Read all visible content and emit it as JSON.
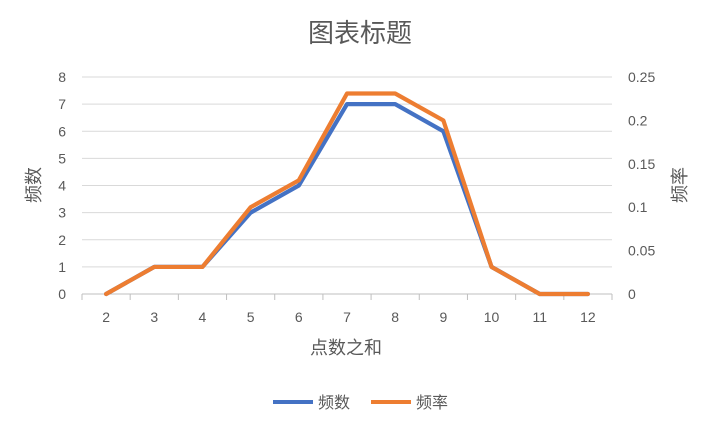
{
  "chart_data": {
    "type": "line",
    "title": "图表标题",
    "xlabel": "点数之和",
    "ylabel": "频数",
    "y2label": "频率",
    "categories": [
      "2",
      "3",
      "4",
      "5",
      "6",
      "7",
      "8",
      "9",
      "10",
      "11",
      "12"
    ],
    "ylim": [
      0,
      8
    ],
    "y2lim": [
      0,
      0.25
    ],
    "y_ticks": [
      "0",
      "1",
      "2",
      "3",
      "4",
      "5",
      "6",
      "7",
      "8"
    ],
    "y2_ticks": [
      "0",
      "0.05",
      "0.1",
      "0.15",
      "0.2",
      "0.25"
    ],
    "grid": true,
    "legend_position": "bottom",
    "series": [
      {
        "name": "频数",
        "axis": "left",
        "color": "#4472C4",
        "values": [
          0,
          1,
          1,
          3,
          4,
          7,
          7,
          6,
          1,
          0,
          0
        ]
      },
      {
        "name": "频率",
        "axis": "right",
        "color": "#ED7D31",
        "values": [
          0,
          0.0312,
          0.0312,
          0.1,
          0.131,
          0.231,
          0.231,
          0.2,
          0.0312,
          0,
          0
        ]
      }
    ]
  }
}
